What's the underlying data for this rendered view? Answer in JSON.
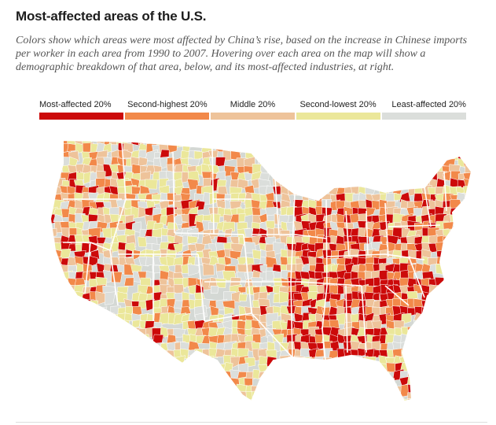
{
  "header": {
    "title": "Most-affected areas of the U.S.",
    "subtitle": "Colors show which areas were most affected by China’s rise, based on the increase in Chinese imports per worker in each area from 1990 to 2007. Hovering over each area on the map will show a demographic breakdown of that area, below, and its most-affected industries, at right."
  },
  "legend": {
    "items": [
      {
        "label": "Most-affected 20%",
        "color": "#cc0a0a"
      },
      {
        "label": "Second-highest 20%",
        "color": "#f2894a"
      },
      {
        "label": "Middle 20%",
        "color": "#eec39a"
      },
      {
        "label": "Second-lowest 20%",
        "color": "#ebe79a"
      },
      {
        "label": "Least-affected 20%",
        "color": "#dbdedb"
      }
    ]
  },
  "map": {
    "land_color": "#d4d8d4",
    "border_color": "#ffffff"
  }
}
